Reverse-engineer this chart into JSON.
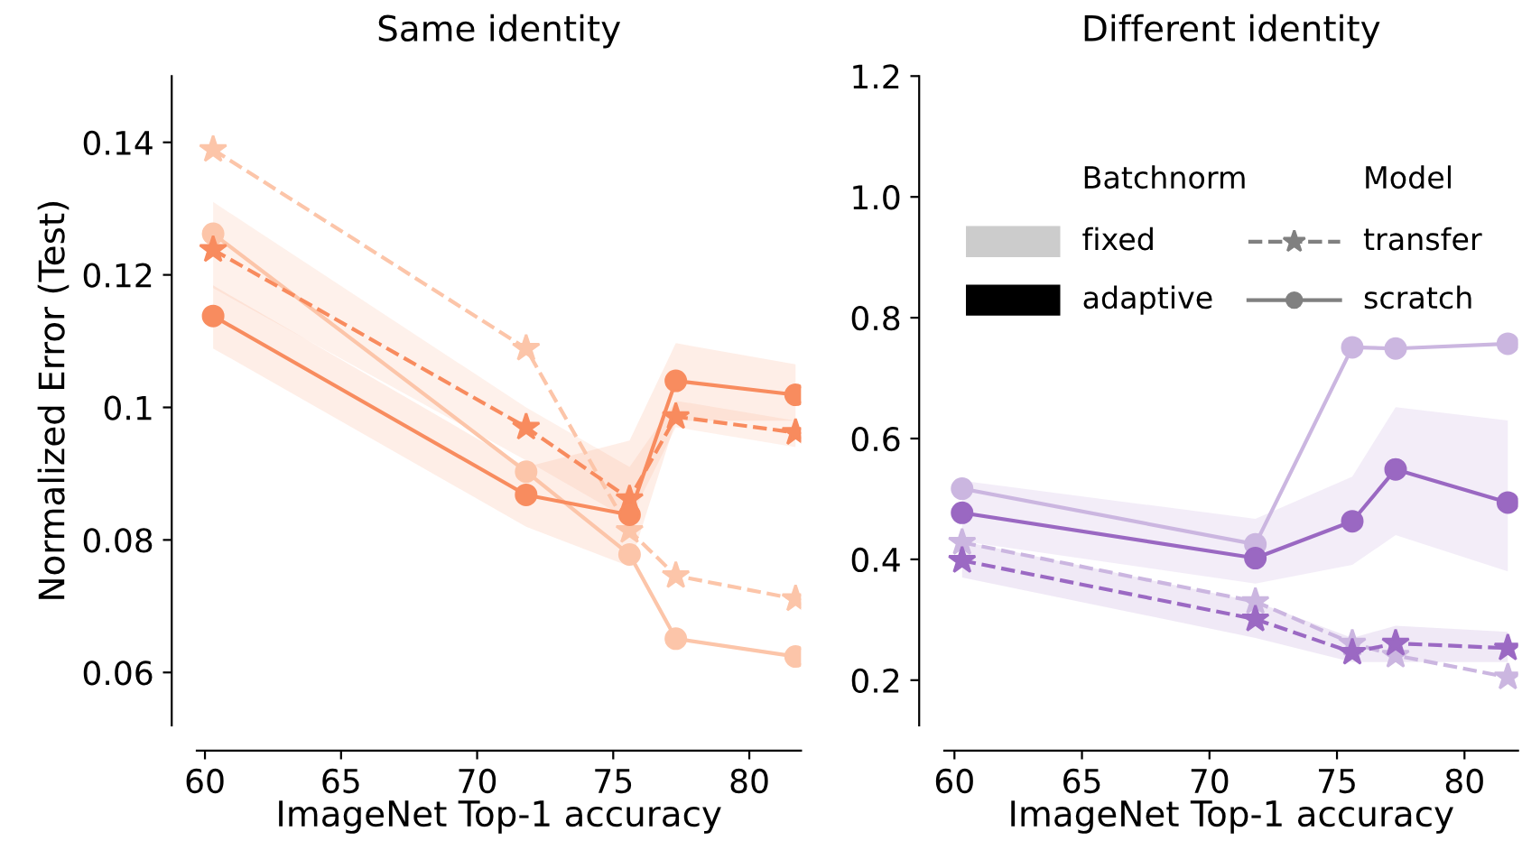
{
  "chart_data": [
    {
      "type": "line",
      "title": "Same identity",
      "xlabel": "ImageNet Top-1 accuracy",
      "ylabel": "Normalized Error (Test)",
      "x": [
        60.3,
        71.8,
        75.6,
        77.3,
        81.7
      ],
      "xlim": [
        59.7,
        81.9
      ],
      "xticks": [
        60,
        65,
        70,
        75,
        80
      ],
      "ylim": [
        0.052,
        0.15
      ],
      "yticks": [
        0.06,
        0.08,
        0.1,
        0.12,
        0.14
      ],
      "grid": false,
      "series": [
        {
          "color": "#fcc5a9",
          "line_style": "dashed",
          "marker": "star",
          "values": [
            0.1389,
            0.1089,
            0.0814,
            0.0746,
            0.0711
          ]
        },
        {
          "color": "#fcc5a9",
          "line_style": "solid",
          "marker": "circle",
          "values": [
            0.1262,
            0.0903,
            0.0778,
            0.0651,
            0.0624
          ]
        },
        {
          "color": "#f88b5e",
          "line_style": "dashed",
          "marker": "star",
          "values": [
            0.1238,
            0.097,
            0.0862,
            0.0986,
            0.0962
          ],
          "lower": [
            0.118,
            0.092,
            0.083,
            0.097,
            0.094
          ],
          "upper": [
            0.131,
            0.1,
            0.091,
            0.101,
            0.098
          ]
        },
        {
          "color": "#f88c5f",
          "line_style": "solid",
          "marker": "circle",
          "values": [
            0.1138,
            0.0868,
            0.0838,
            0.104,
            0.1019
          ],
          "lower": [
            0.1089,
            0.082,
            0.076,
            0.098,
            0.098
          ],
          "upper": [
            0.1184,
            0.091,
            0.095,
            0.1097,
            0.1065
          ]
        }
      ]
    },
    {
      "type": "line",
      "title": "Different identity",
      "xlabel": "ImageNet Top-1 accuracy",
      "x": [
        60.3,
        71.8,
        75.6,
        77.3,
        81.7
      ],
      "xlim": [
        59.6,
        82.1
      ],
      "xticks": [
        60,
        65,
        70,
        75,
        80
      ],
      "ylim": [
        0.125,
        1.2
      ],
      "yticks": [
        0.2,
        0.4,
        0.6,
        0.8,
        {
          "value": 1.0,
          "label": "1.0"
        },
        1.2
      ],
      "grid": false,
      "annotations": [
        "Batchnorm",
        "fixed",
        "adaptive",
        "Model",
        "transfer",
        "scratch"
      ],
      "series": [
        {
          "color": "#cbb6e0",
          "line_style": "solid",
          "marker": "circle",
          "values": [
            0.517,
            0.425,
            0.751,
            0.749,
            0.757
          ]
        },
        {
          "color": "#cbb6e0",
          "line_style": "dashed",
          "marker": "star",
          "values": [
            0.428,
            0.33,
            0.261,
            0.241,
            0.205
          ]
        },
        {
          "color": "#9a68c2",
          "line_style": "solid",
          "marker": "circle",
          "values": [
            0.477,
            0.402,
            0.463,
            0.549,
            0.494
          ],
          "lower": [
            0.43,
            0.36,
            0.391,
            0.44,
            0.38
          ],
          "upper": [
            0.53,
            0.467,
            0.537,
            0.652,
            0.63
          ]
        },
        {
          "color": "#9b69c3",
          "line_style": "dashed",
          "marker": "star",
          "values": [
            0.398,
            0.301,
            0.246,
            0.261,
            0.253
          ],
          "lower": [
            0.37,
            0.27,
            0.23,
            0.23,
            0.23
          ],
          "upper": [
            0.43,
            0.33,
            0.27,
            0.29,
            0.28
          ]
        }
      ]
    }
  ]
}
